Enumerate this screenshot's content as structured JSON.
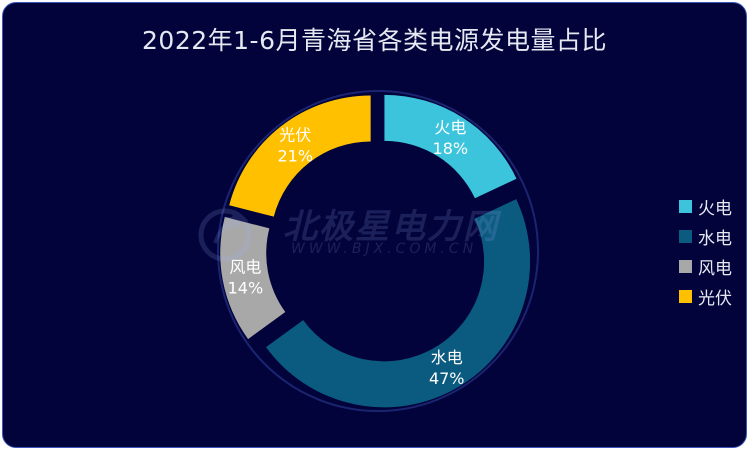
{
  "chart_data": {
    "type": "pie",
    "title": "2022年1-6月青海省各类电源发电量占比",
    "categories": [
      "火电",
      "水电",
      "风电",
      "光伏"
    ],
    "values": [
      18,
      47,
      14,
      21
    ],
    "labels": [
      "18%",
      "47%",
      "14%",
      "21%"
    ],
    "colors": [
      "#3cc4dc",
      "#0b5a80",
      "#a8a8a8",
      "#ffc000"
    ],
    "legend_position": "right"
  },
  "watermark": {
    "cn": "北极星电力网",
    "en": "WWW.BJX.COM.CN"
  },
  "colors": {
    "background": "#02033a",
    "border": "#3a56b8",
    "text": "#e6e8f2"
  }
}
